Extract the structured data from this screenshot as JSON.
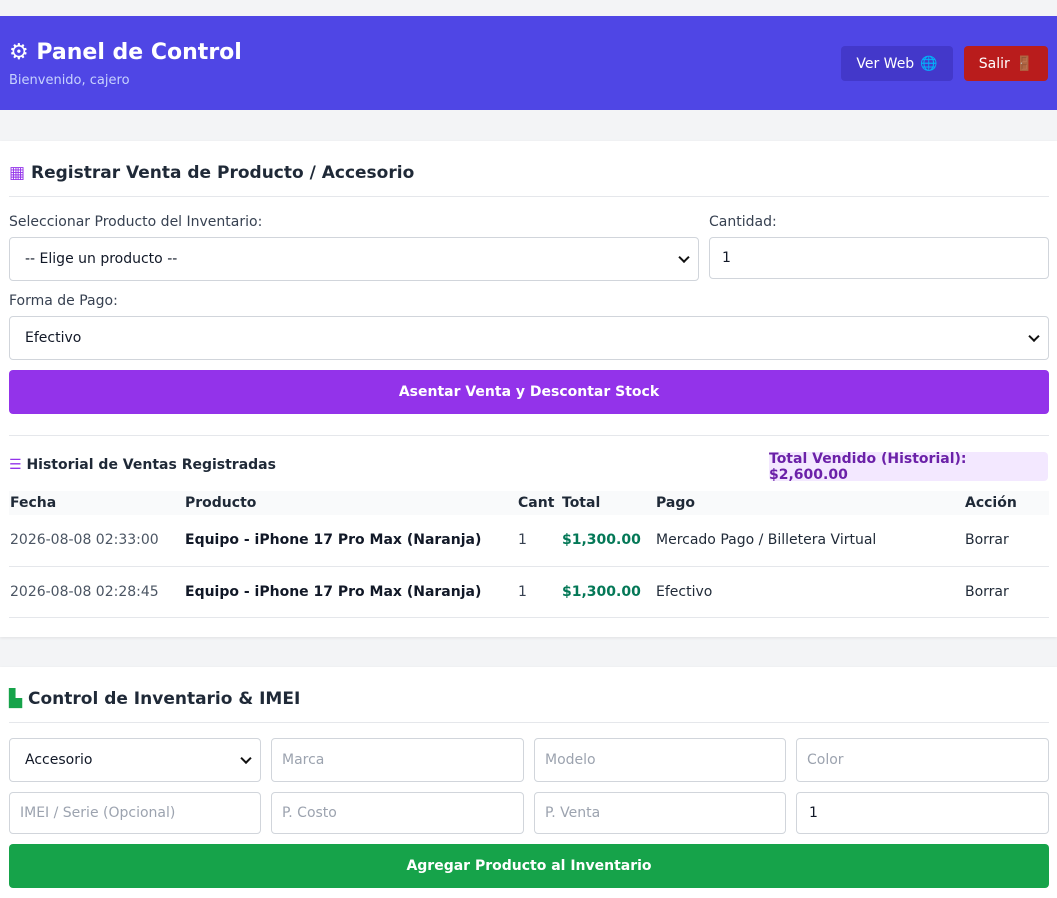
{
  "header": {
    "title": "Panel de Control",
    "subtitle": "Bienvenido, cajero",
    "view_button": "Ver Web",
    "logout_button": "Salir"
  },
  "sale_form": {
    "title": "Registrar Venta de Producto / Accesorio",
    "product_label": "Seleccionar Producto del Inventario:",
    "product_value": "-- Elige un producto --",
    "quantity_label": "Cantidad:",
    "quantity_value": 1,
    "payment_label": "Forma de Pago:",
    "payment_value": "Efectivo",
    "submit": "Asentar Venta y Descontar Stock"
  },
  "history": {
    "title": "Historial de Ventas Registradas",
    "total": "Total Vendido (Historial): $2,600.00",
    "columns": [
      "Fecha",
      "Producto",
      "Cant",
      "Total",
      "Pago",
      "Acción"
    ],
    "rows": [
      [
        "2026-08-08 02:33:00",
        "Equipo - iPhone 17 Pro Max (Naranja)",
        1,
        "$1,300.00",
        "Mercado Pago / Billetera Virtual",
        "Borrar"
      ],
      [
        "2026-08-08 02:28:45",
        "Equipo - iPhone 17 Pro Max (Naranja)",
        1,
        "$1,300.00",
        "Efectivo",
        "Borrar"
      ]
    ]
  },
  "inventory": {
    "title": "Control de Inventario & IMEI",
    "type_value": "Accesorio",
    "brand": "Marca",
    "model": "Modelo",
    "color": "Color",
    "imei": "IMEI / Serie (Opcional)",
    "cost": "P. Costo",
    "price": "P. Venta",
    "stock_value": 1,
    "submit": "Agregar Producto al Inventario"
  }
}
